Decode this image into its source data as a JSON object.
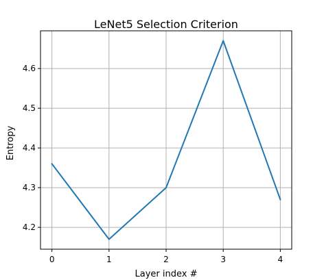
{
  "chart_data": {
    "type": "line",
    "title": "LeNet5 Selection Criterion",
    "xlabel": "Layer index #",
    "ylabel": "Entropy",
    "x": [
      0,
      1,
      2,
      3,
      4
    ],
    "series": [
      {
        "values": [
          4.36,
          4.17,
          4.3,
          4.67,
          4.27
        ],
        "color": "#1f77b4"
      }
    ],
    "xlim": [
      -0.2,
      4.2
    ],
    "ylim": [
      4.145,
      4.695
    ],
    "xticks": [
      0,
      1,
      2,
      3,
      4
    ],
    "xtick_labels": [
      "0",
      "1",
      "2",
      "3",
      "4"
    ],
    "yticks": [
      4.2,
      4.3,
      4.4,
      4.5,
      4.6
    ],
    "ytick_labels": [
      "4.2",
      "4.3",
      "4.4",
      "4.5",
      "4.6"
    ],
    "grid": true
  }
}
